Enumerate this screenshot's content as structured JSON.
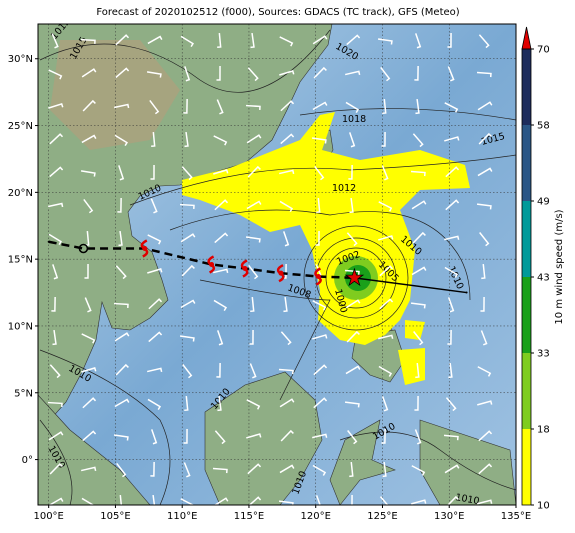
{
  "map": {
    "title": "Forecast of 2020102512 (f000), Sources: GDACS (TC track), GFS (Meteo)",
    "xlim": [
      99.2,
      135
    ],
    "ylim": [
      -3.4,
      32.6
    ],
    "xticks": [
      {
        "value": 100,
        "label": "100°E"
      },
      {
        "value": 105,
        "label": "105°E"
      },
      {
        "value": 110,
        "label": "110°E"
      },
      {
        "value": 115,
        "label": "115°E"
      },
      {
        "value": 120,
        "label": "120°E"
      },
      {
        "value": 125,
        "label": "125°E"
      },
      {
        "value": 130,
        "label": "130°E"
      },
      {
        "value": 135,
        "label": "135°E"
      }
    ],
    "yticks": [
      {
        "value": 0,
        "label": "0°"
      },
      {
        "value": 5,
        "label": "5°N"
      },
      {
        "value": 10,
        "label": "10°N"
      },
      {
        "value": 15,
        "label": "15°N"
      },
      {
        "value": 20,
        "label": "20°N"
      },
      {
        "value": 25,
        "label": "25°N"
      },
      {
        "value": 30,
        "label": "30°N"
      }
    ],
    "grid": true,
    "track": {
      "lon": [
        100,
        102.6,
        107.2,
        112.2,
        114.7,
        117.4,
        120.2,
        122.9,
        131.3
      ],
      "lat": [
        16.3,
        15.8,
        15.8,
        14.6,
        14.3,
        13.95,
        13.7,
        13.6,
        12.5
      ],
      "color": "#000000",
      "marker_color": "#e00000"
    },
    "isobar_labels": [
      "1012",
      "1015",
      "1020",
      "1018",
      "1015",
      "1010",
      "1012",
      "1008",
      "1010",
      "1005",
      "1002",
      "1000",
      "1010",
      "1010",
      "1010",
      "1010",
      "1010",
      "1010",
      "1010"
    ],
    "colorbar": {
      "label": "10 m wind speed (m/s)",
      "levels": [
        10,
        18,
        33,
        43,
        49,
        58,
        70
      ],
      "colors": [
        "#ffff00",
        "#7fcc1f",
        "#1aa01a",
        "#009a9a",
        "#2a5686",
        "#1d2c5c"
      ],
      "extend_color": "#e00000"
    }
  }
}
